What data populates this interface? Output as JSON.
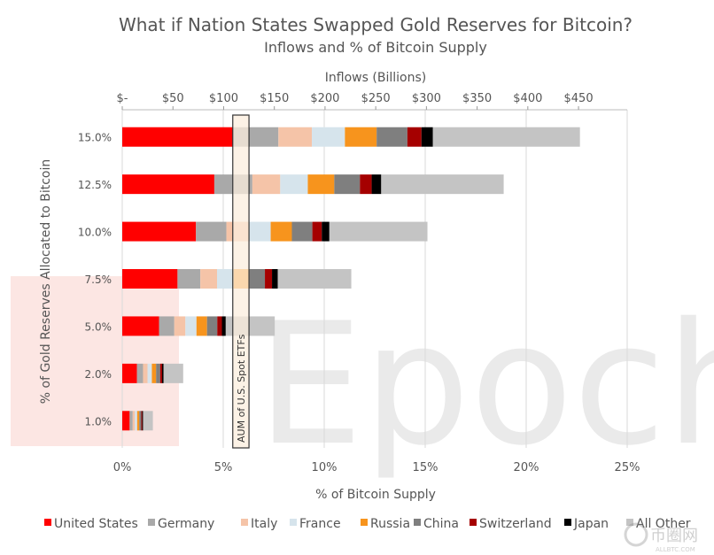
{
  "chart_data": {
    "type": "bar",
    "orientation": "horizontal",
    "stacked": true,
    "title": "What if Nation States Swapped Gold Reserves for Bitcoin?",
    "subtitle": "Inflows and % of Bitcoin Supply",
    "ylabel": "% of Gold Reserves Allocated to Bitcoin",
    "xlabel": "% of Bitcoin Supply",
    "x2label": "Inflows (Billions)",
    "categories": [
      "15.0%",
      "12.5%",
      "10.0%",
      "7.5%",
      "5.0%",
      "2.0%",
      "1.0%"
    ],
    "x_ticks": [
      "0%",
      "5%",
      "10%",
      "15%",
      "20%",
      "25%"
    ],
    "xlim_percent": [
      0,
      25
    ],
    "x2_ticks": [
      "$-",
      "$50",
      "$100",
      "$150",
      "$200",
      "$250",
      "$300",
      "$350",
      "$400",
      "$450"
    ],
    "x2lim_billions": [
      0,
      498
    ],
    "units": "billions USD",
    "grid": true,
    "legend_position": "bottom",
    "series": [
      {
        "name": "United States",
        "color": "#ff0000",
        "values": [
          109,
          90.8,
          72.7,
          54.5,
          36.3,
          14.5,
          7.3
        ]
      },
      {
        "name": "Germany",
        "color": "#a9a9a9",
        "values": [
          45,
          37.5,
          30,
          22.5,
          15,
          6,
          3
        ]
      },
      {
        "name": "Italy",
        "color": "#f5c4a8",
        "values": [
          33,
          27.5,
          22,
          16.5,
          11,
          4.4,
          2.2
        ]
      },
      {
        "name": "France",
        "color": "#d6e4ec",
        "values": [
          32.6,
          27.2,
          21.7,
          16.3,
          10.9,
          4.3,
          2.2
        ]
      },
      {
        "name": "Russia",
        "color": "#f7941d",
        "values": [
          31.3,
          26.1,
          20.9,
          15.7,
          10.4,
          4.2,
          2.1
        ]
      },
      {
        "name": "China",
        "color": "#7f7f7f",
        "values": [
          30.3,
          25.3,
          20.2,
          15.2,
          10.1,
          4,
          2
        ]
      },
      {
        "name": "Switzerland",
        "color": "#a50000",
        "values": [
          13.9,
          11.6,
          9.3,
          7,
          4.6,
          1.9,
          0.9
        ]
      },
      {
        "name": "Japan",
        "color": "#000000",
        "values": [
          11.3,
          9.4,
          7.5,
          5.7,
          3.8,
          1.5,
          0.8
        ]
      },
      {
        "name": "All Other",
        "color": "#c4c4c4",
        "values": [
          145,
          120.8,
          96.7,
          72.5,
          48.3,
          19.3,
          9.7
        ]
      }
    ],
    "annotation": {
      "label": "AUM of U.S. Spot ETFs",
      "range_billions": [
        109,
        125
      ],
      "color": "#fbeedd"
    }
  },
  "watermarks": [
    "Epoch",
    "币圈网",
    "ALLBTC.COM"
  ]
}
